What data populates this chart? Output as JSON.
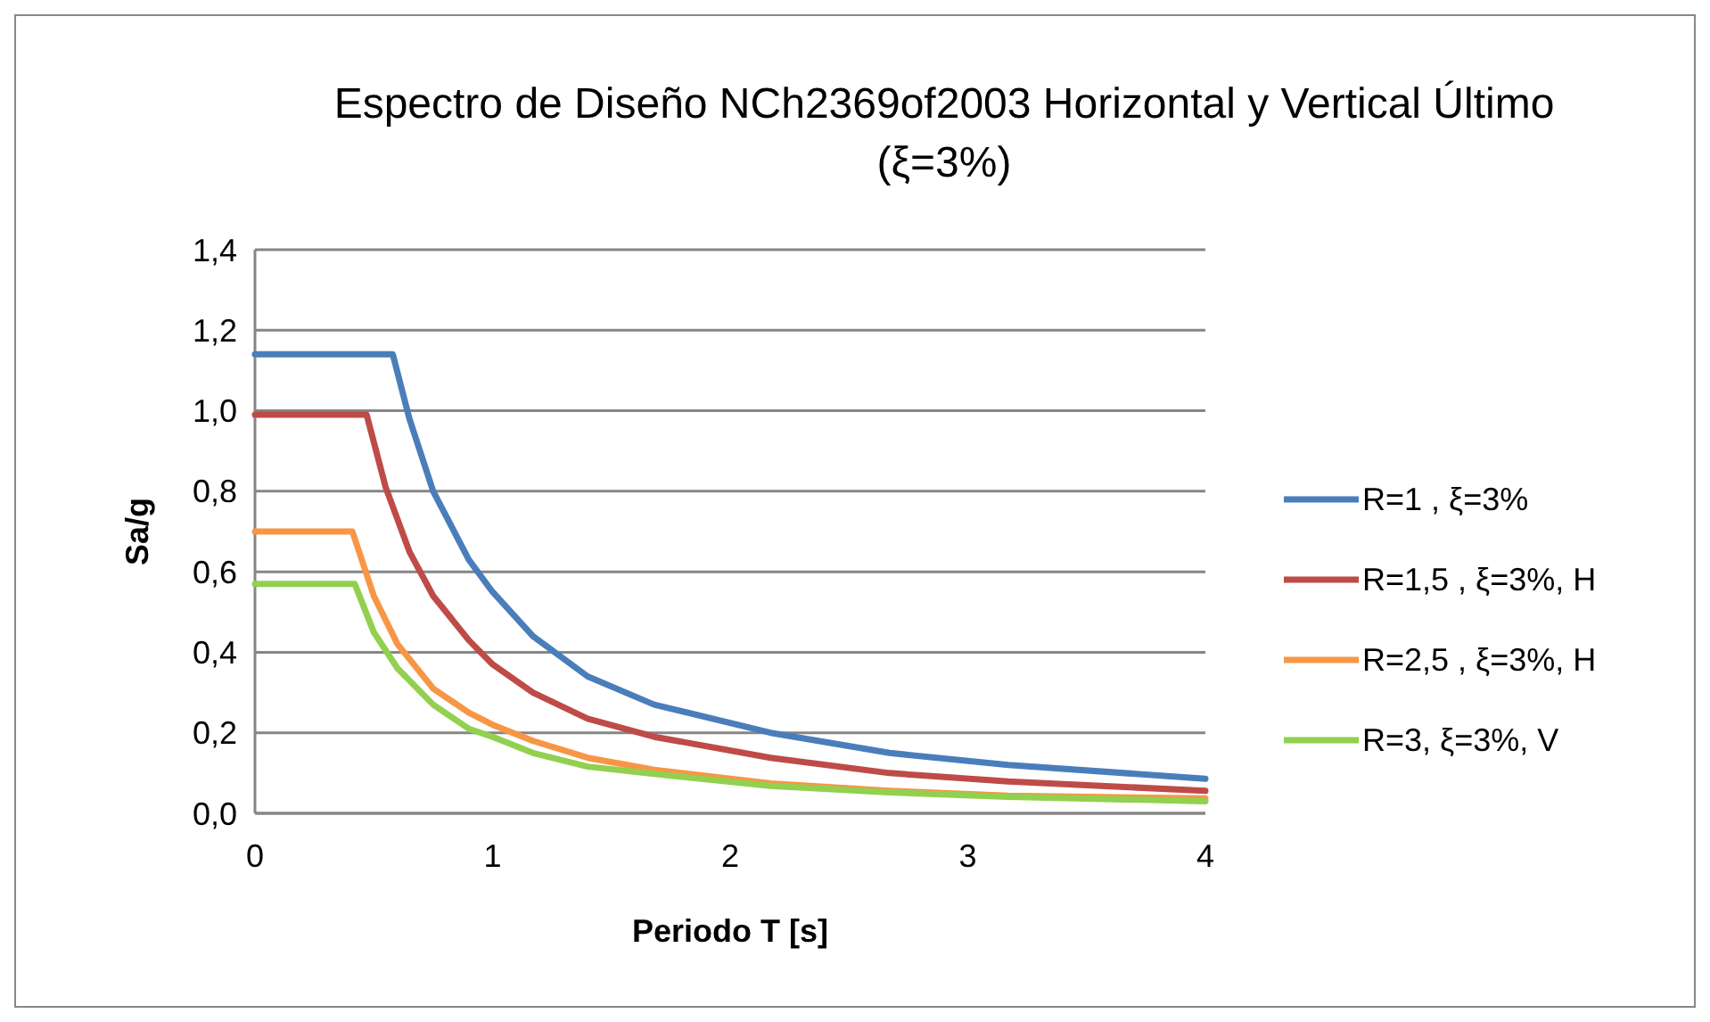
{
  "chart_data": {
    "type": "line",
    "title": "Espectro de Diseño NCh2369of2003 Horizontal y Vertical Último (ξ=3%)",
    "xlabel": "Periodo T [s]",
    "ylabel": "Sa/g",
    "xlim": [
      0,
      4
    ],
    "xticks": [
      0,
      1,
      2,
      3,
      4
    ],
    "ylim": [
      0,
      1.4
    ],
    "yticks": [
      {
        "value": 0,
        "label": "0,0"
      },
      {
        "value": 0.2,
        "label": "0,2"
      },
      {
        "value": 0.4,
        "label": "0,4"
      },
      {
        "value": 0.6,
        "label": "0,6"
      },
      {
        "value": 0.8,
        "label": "0,8"
      },
      {
        "value": 1,
        "label": "1,0"
      },
      {
        "value": 1.2,
        "label": "1,2"
      },
      {
        "value": 1.4,
        "label": "1,4"
      }
    ],
    "grid": "y",
    "legend": "right",
    "marker": "none",
    "line_style": "solid",
    "series": [
      {
        "name": "R=1 , ξ=3%",
        "color": "#4a7ebb",
        "x": [
          0,
          0.58,
          0.65,
          0.75,
          0.9,
          1,
          1.17,
          1.4,
          1.68,
          2.17,
          2.67,
          3.17,
          4
        ],
        "values": [
          1.14,
          1.14,
          0.98,
          0.8,
          0.63,
          0.55,
          0.44,
          0.34,
          0.27,
          0.2,
          0.15,
          0.12,
          0.086
        ]
      },
      {
        "name": "R=1,5 , ξ=3%, H",
        "color": "#be4b48",
        "x": [
          0,
          0.47,
          0.55,
          0.65,
          0.75,
          0.9,
          1,
          1.17,
          1.4,
          1.68,
          2.17,
          2.67,
          3.17,
          4
        ],
        "values": [
          0.99,
          0.99,
          0.81,
          0.65,
          0.54,
          0.43,
          0.37,
          0.3,
          0.235,
          0.19,
          0.138,
          0.1,
          0.079,
          0.056
        ]
      },
      {
        "name": "R=2,5 , ξ=3%, H",
        "color": "#f79646",
        "x": [
          0,
          0.41,
          0.5,
          0.6,
          0.75,
          0.9,
          1,
          1.17,
          1.4,
          1.68,
          2.17,
          2.67,
          3.17,
          4
        ],
        "values": [
          0.7,
          0.7,
          0.54,
          0.42,
          0.31,
          0.25,
          0.22,
          0.18,
          0.138,
          0.108,
          0.074,
          0.056,
          0.044,
          0.037
        ]
      },
      {
        "name": "R=3, ξ=3%, V",
        "color": "#92d050",
        "x": [
          0,
          0.42,
          0.5,
          0.6,
          0.75,
          0.9,
          1,
          1.17,
          1.4,
          1.68,
          2.17,
          2.67,
          3.17,
          4
        ],
        "values": [
          0.57,
          0.57,
          0.45,
          0.36,
          0.27,
          0.21,
          0.19,
          0.15,
          0.116,
          0.098,
          0.068,
          0.052,
          0.041,
          0.03
        ]
      }
    ]
  }
}
